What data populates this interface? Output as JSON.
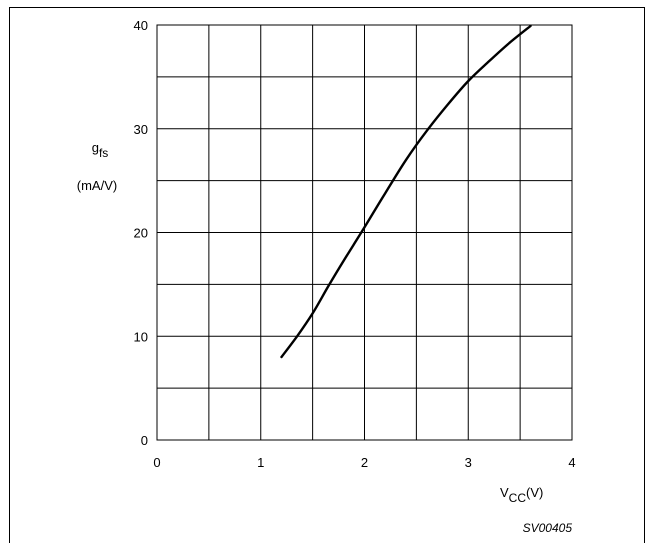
{
  "chart_data": {
    "type": "line",
    "xlabel": {
      "main": "V",
      "sub": "CC",
      "unit": "(V)"
    },
    "ylabel": {
      "main": "g",
      "sub": "fs",
      "unit": "(mA/V)"
    },
    "xlim": [
      0,
      4
    ],
    "ylim": [
      0,
      40
    ],
    "x_ticks": [
      "0",
      "1",
      "2",
      "3",
      "4"
    ],
    "y_ticks": [
      "0",
      "10",
      "20",
      "30",
      "40"
    ],
    "grid": true,
    "figure_code": "SV00405",
    "series": [
      {
        "x": [
          1.2,
          1.35,
          1.5,
          1.65,
          1.8,
          2.0,
          2.2,
          2.4,
          2.6,
          2.8,
          3.0,
          3.2,
          3.4,
          3.6
        ],
        "y": [
          8.0,
          10.0,
          12.2,
          14.8,
          17.3,
          20.5,
          23.8,
          27.0,
          29.8,
          32.3,
          34.6,
          36.5,
          38.3,
          39.9
        ]
      }
    ]
  }
}
